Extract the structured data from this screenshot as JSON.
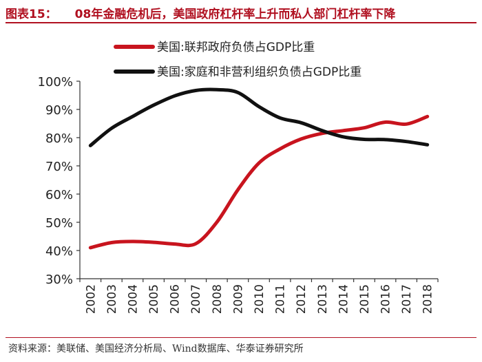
{
  "figure": {
    "label": "图表15：",
    "title": "08年金融危机后，美国政府杠杆率上升而私人部门杠杆率下降",
    "source": "资料来源：美联储、美国经济分析局、Wind数据库、华泰证券研究所",
    "colors": {
      "accent": "#b01020"
    }
  },
  "chart_data": {
    "type": "line",
    "title": "",
    "xlabel": "",
    "ylabel": "",
    "x": [
      "2002",
      "2003",
      "2004",
      "2005",
      "2006",
      "2007",
      "2008",
      "2009",
      "2010",
      "2011",
      "2012",
      "2013",
      "2014",
      "2015",
      "2016",
      "2017",
      "2018"
    ],
    "ylim": [
      30,
      100
    ],
    "yticks": [
      "30%",
      "40%",
      "50%",
      "60%",
      "70%",
      "80%",
      "90%",
      "100%"
    ],
    "legend_position": "top",
    "series": [
      {
        "name": "美国:联邦政府负债占GDP比重",
        "color": "#c8141e",
        "values": [
          41,
          42.8,
          43.2,
          42.9,
          42.3,
          42.4,
          50,
          61.5,
          71,
          76,
          79.5,
          81.5,
          82.5,
          83.5,
          85.5,
          84.8,
          87.5
        ]
      },
      {
        "name": "美国:家庭和非营利组织负债占GDP比重",
        "color": "#111111",
        "values": [
          77.2,
          83.3,
          87.5,
          91.5,
          94.8,
          96.7,
          97,
          96,
          91,
          87,
          85.3,
          82.5,
          80.3,
          79.4,
          79.3,
          78.6,
          77.5
        ]
      }
    ]
  }
}
